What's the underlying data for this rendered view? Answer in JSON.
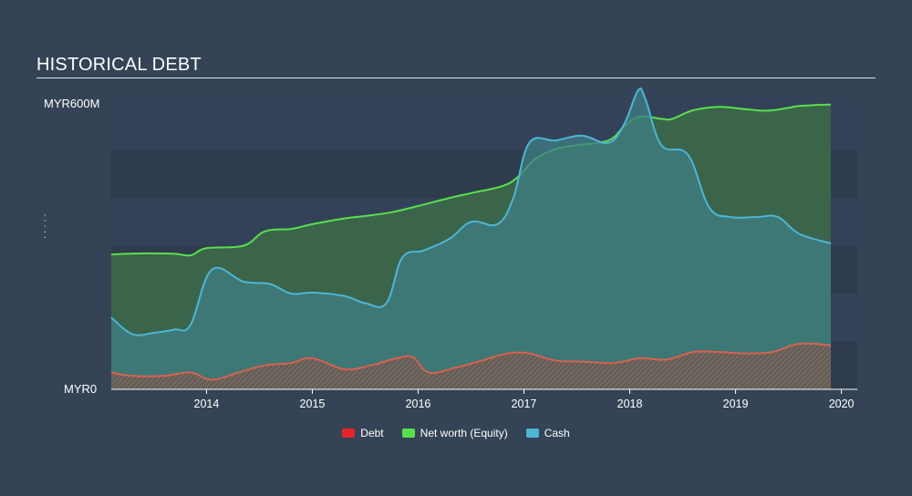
{
  "title": "HISTORICAL DEBT",
  "y_axis": {
    "max_label": "MYR600M",
    "min_label": "MYR0",
    "rotated_label": "· · · · ·"
  },
  "x_axis": {
    "ticks": [
      "2014",
      "2015",
      "2016",
      "2017",
      "2018",
      "2019",
      "2020"
    ]
  },
  "legend": [
    {
      "name": "Debt",
      "color": "#e8242b"
    },
    {
      "name": "Net worth (Equity)",
      "color": "#58e04c"
    },
    {
      "name": "Cash",
      "color": "#4bb6d6"
    }
  ],
  "chart_data": {
    "type": "area",
    "title": "HISTORICAL DEBT",
    "ylabel": "",
    "xlabel": "",
    "ylim": [
      0,
      600
    ],
    "xlim": [
      2013.1,
      2020.15
    ],
    "grid": true,
    "legend_position": "bottom-center",
    "series": [
      {
        "name": "Net worth (Equity)",
        "color": "#58e04c",
        "points": [
          [
            2013.1,
            282
          ],
          [
            2013.4,
            284
          ],
          [
            2013.7,
            283
          ],
          [
            2013.85,
            280
          ],
          [
            2014.0,
            295
          ],
          [
            2014.35,
            300
          ],
          [
            2014.55,
            330
          ],
          [
            2014.8,
            335
          ],
          [
            2015.0,
            345
          ],
          [
            2015.3,
            357
          ],
          [
            2015.5,
            362
          ],
          [
            2015.75,
            370
          ],
          [
            2016.0,
            383
          ],
          [
            2016.3,
            400
          ],
          [
            2016.5,
            410
          ],
          [
            2016.8,
            425
          ],
          [
            2016.95,
            445
          ],
          [
            2017.1,
            480
          ],
          [
            2017.3,
            502
          ],
          [
            2017.5,
            510
          ],
          [
            2017.8,
            520
          ],
          [
            2017.95,
            550
          ],
          [
            2018.1,
            570
          ],
          [
            2018.3,
            565
          ],
          [
            2018.4,
            565
          ],
          [
            2018.6,
            583
          ],
          [
            2018.85,
            590
          ],
          [
            2019.1,
            585
          ],
          [
            2019.3,
            582
          ],
          [
            2019.5,
            588
          ],
          [
            2019.6,
            592
          ],
          [
            2019.9,
            595
          ]
        ]
      },
      {
        "name": "Cash",
        "color": "#4bb6d6",
        "points": [
          [
            2013.1,
            150
          ],
          [
            2013.3,
            115
          ],
          [
            2013.5,
            118
          ],
          [
            2013.7,
            125
          ],
          [
            2013.85,
            135
          ],
          [
            2014.05,
            250
          ],
          [
            2014.35,
            225
          ],
          [
            2014.6,
            220
          ],
          [
            2014.8,
            200
          ],
          [
            2015.0,
            202
          ],
          [
            2015.3,
            195
          ],
          [
            2015.5,
            180
          ],
          [
            2015.7,
            180
          ],
          [
            2015.85,
            275
          ],
          [
            2016.05,
            290
          ],
          [
            2016.3,
            315
          ],
          [
            2016.5,
            350
          ],
          [
            2016.75,
            345
          ],
          [
            2016.9,
            400
          ],
          [
            2017.05,
            515
          ],
          [
            2017.3,
            520
          ],
          [
            2017.55,
            530
          ],
          [
            2017.8,
            515
          ],
          [
            2017.95,
            555
          ],
          [
            2018.08,
            625
          ],
          [
            2018.15,
            605
          ],
          [
            2018.3,
            510
          ],
          [
            2018.55,
            490
          ],
          [
            2018.75,
            380
          ],
          [
            2018.95,
            360
          ],
          [
            2019.2,
            360
          ],
          [
            2019.4,
            360
          ],
          [
            2019.6,
            325
          ],
          [
            2019.9,
            305
          ]
        ]
      },
      {
        "name": "Debt",
        "color": "#e8242b",
        "points": [
          [
            2013.1,
            35
          ],
          [
            2013.3,
            28
          ],
          [
            2013.6,
            28
          ],
          [
            2013.85,
            35
          ],
          [
            2014.05,
            20
          ],
          [
            2014.3,
            35
          ],
          [
            2014.55,
            50
          ],
          [
            2014.8,
            55
          ],
          [
            2015.0,
            65
          ],
          [
            2015.3,
            42
          ],
          [
            2015.55,
            50
          ],
          [
            2015.8,
            65
          ],
          [
            2015.95,
            67
          ],
          [
            2016.1,
            35
          ],
          [
            2016.35,
            45
          ],
          [
            2016.6,
            60
          ],
          [
            2016.85,
            75
          ],
          [
            2017.05,
            75
          ],
          [
            2017.3,
            60
          ],
          [
            2017.55,
            58
          ],
          [
            2017.85,
            55
          ],
          [
            2018.1,
            65
          ],
          [
            2018.35,
            62
          ],
          [
            2018.6,
            78
          ],
          [
            2018.85,
            78
          ],
          [
            2019.1,
            75
          ],
          [
            2019.35,
            78
          ],
          [
            2019.6,
            95
          ],
          [
            2019.9,
            92
          ]
        ]
      }
    ]
  }
}
